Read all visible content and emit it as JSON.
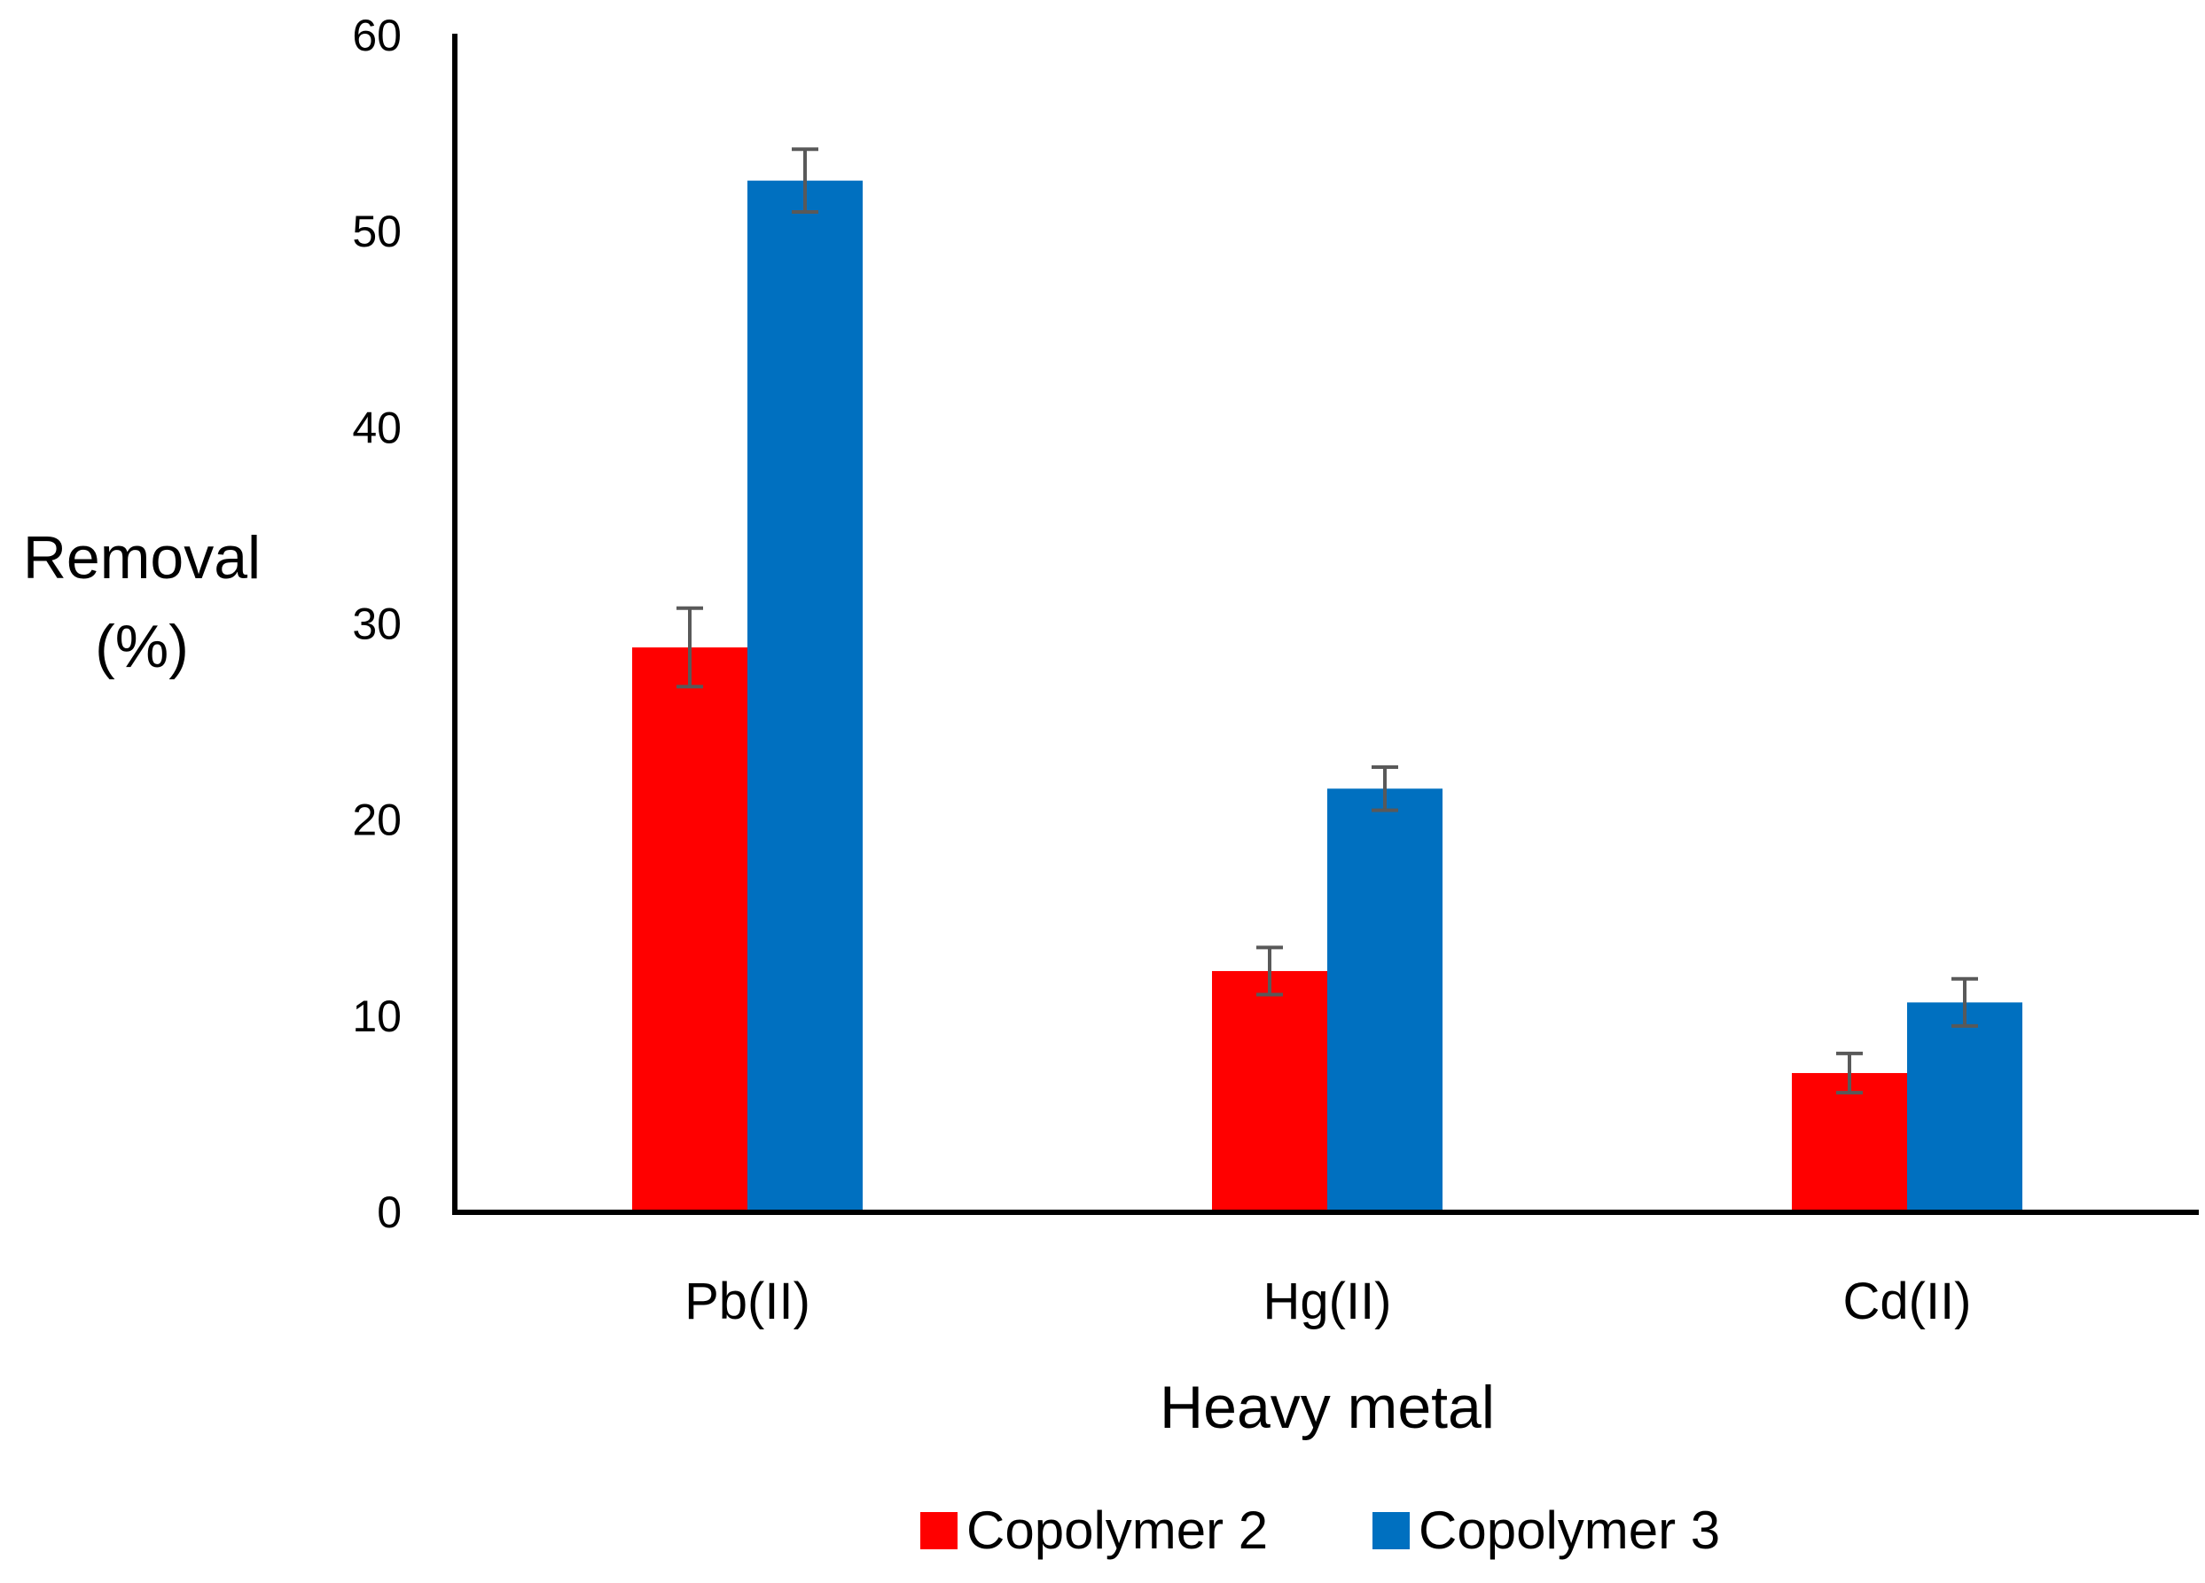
{
  "chart_data": {
    "type": "bar",
    "title": "",
    "xlabel": "Heavy metal",
    "ylabel_lines": [
      "Removal",
      "(%)"
    ],
    "categories": [
      "Pb(II)",
      "Hg(II)",
      "Cd(II)"
    ],
    "ylim": [
      0,
      60
    ],
    "yticks": [
      0,
      10,
      20,
      30,
      40,
      50,
      60
    ],
    "grid": false,
    "legend_position": "bottom",
    "series": [
      {
        "name": "Copolymer 2",
        "color": "#ff0000",
        "values": [
          28.8,
          12.3,
          7.1
        ],
        "errors": [
          2.0,
          1.2,
          1.0
        ]
      },
      {
        "name": "Copolymer 3",
        "color": "#0070c0",
        "values": [
          52.6,
          21.6,
          10.7
        ],
        "errors": [
          1.6,
          1.1,
          1.2
        ]
      }
    ],
    "error_bar_color": "#595959"
  }
}
